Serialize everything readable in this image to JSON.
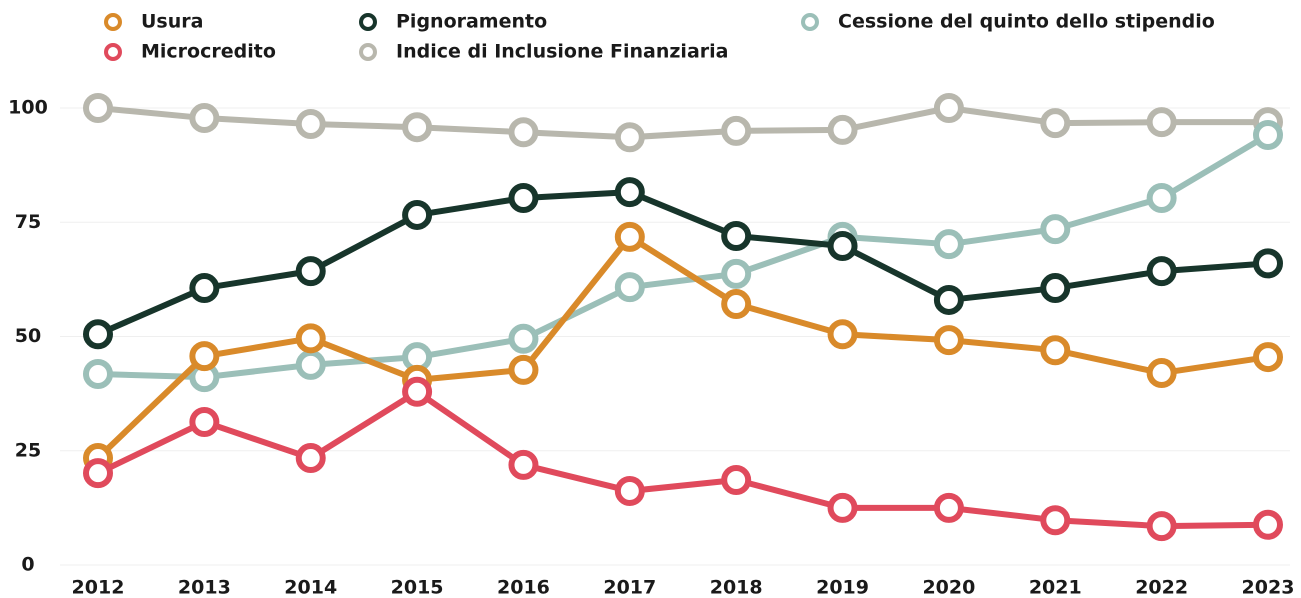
{
  "chart_data": {
    "type": "line",
    "x": [
      "2012",
      "2013",
      "2014",
      "2015",
      "2016",
      "2017",
      "2018",
      "2019",
      "2020",
      "2021",
      "2022",
      "2023"
    ],
    "series": [
      {
        "name": "Usura",
        "color": "#d98a2a",
        "values": [
          23.4,
          45.7,
          49.6,
          40.5,
          42.7,
          71.8,
          57.1,
          50.5,
          49.2,
          47,
          42,
          45.5
        ]
      },
      {
        "name": "Microcredito",
        "color": "#e04a5c",
        "values": [
          20.1,
          31.3,
          23.4,
          37.9,
          21.9,
          16.2,
          18.6,
          12.5,
          12.5,
          9.8,
          8.5,
          8.8
        ]
      },
      {
        "name": "Pignoramento",
        "color": "#17352b",
        "values": [
          50.5,
          60.6,
          64.3,
          76.6,
          80.3,
          81.6,
          72,
          69.8,
          58,
          60.6,
          64.3,
          66
        ]
      },
      {
        "name": "Indice di Inclusione Finanziaria",
        "color": "#b8b7ad",
        "values": [
          100,
          97.8,
          96.5,
          95.8,
          94.7,
          93.6,
          95,
          95.2,
          100,
          96.7,
          96.9,
          96.9
        ]
      },
      {
        "name": "Cessione del quinto dello stipendio",
        "color": "#9bbfb8",
        "values": [
          41.8,
          41.1,
          43.8,
          45.5,
          49.5,
          60.8,
          63.7,
          71.8,
          70.2,
          73.5,
          80.3,
          94.1
        ]
      }
    ],
    "ylim": [
      0,
      100
    ],
    "yticks": [
      0,
      25,
      50,
      75,
      100
    ],
    "grid": true
  }
}
